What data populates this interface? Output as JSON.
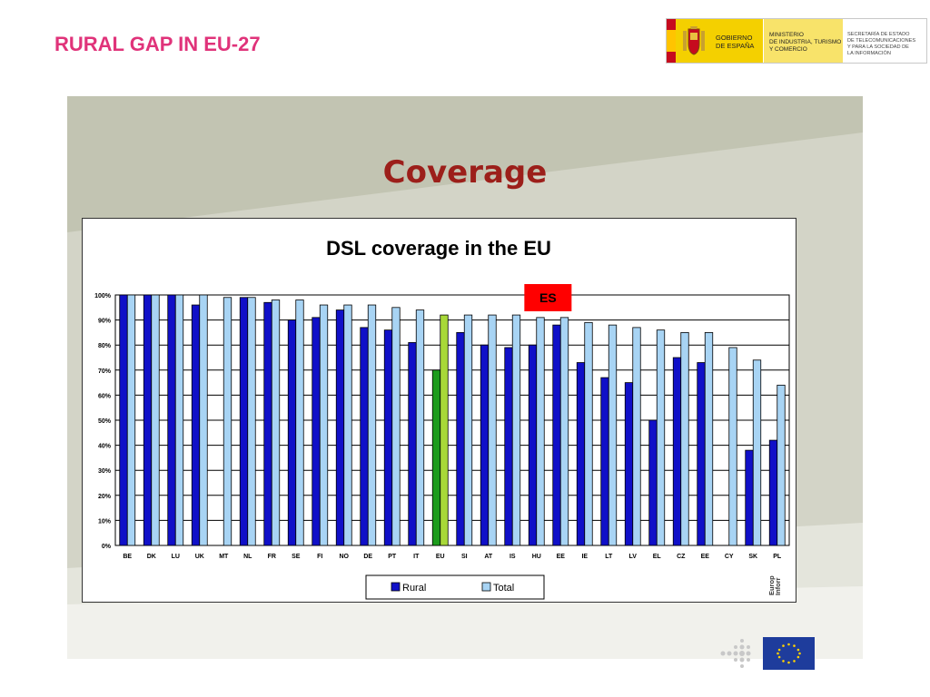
{
  "slide": {
    "title": "RURAL GAP IN EU-27"
  },
  "logo": {
    "seg1": "GOBIERNO\nDE ESPAÑA",
    "seg2": "MINISTERIO\nDE INDUSTRIA, TURISMO\nY COMERCIO",
    "seg3": "SECRETARÍA DE ESTADO\nDE TELECOMUNICACIONES\nY PARA LA SOCIEDAD DE\nLA INFORMACIÓN"
  },
  "panel": {
    "title": "Coverage"
  },
  "eu_label": "Europ\nInforr",
  "colors": {
    "rural": "#1010c8",
    "total": "#a8d4f4",
    "eu_rural": "#1c9c1c",
    "eu_total": "#a8d838",
    "highlight": "#ff0000"
  },
  "chart_data": {
    "type": "bar",
    "title": "DSL coverage in the EU",
    "categories": [
      "BE",
      "DK",
      "LU",
      "UK",
      "MT",
      "NL",
      "FR",
      "SE",
      "FI",
      "NO",
      "DE",
      "PT",
      "IT",
      "EU",
      "SI",
      "AT",
      "IS",
      "HU",
      "EE",
      "IE",
      "LT",
      "LV",
      "EL",
      "CZ",
      "EE",
      "CY",
      "SK",
      "PL"
    ],
    "series": [
      {
        "name": "Rural",
        "values": [
          100,
          100,
          100,
          96,
          0,
          99,
          97,
          90,
          91,
          94,
          87,
          86,
          81,
          70,
          85,
          80,
          79,
          80,
          88,
          73,
          67,
          65,
          50,
          75,
          73,
          0,
          38,
          42
        ]
      },
      {
        "name": "Total",
        "values": [
          100,
          100,
          100,
          100,
          99,
          99,
          98,
          98,
          96,
          96,
          96,
          95,
          94,
          92,
          92,
          92,
          92,
          91,
          91,
          89,
          88,
          87,
          86,
          85,
          85,
          79,
          74,
          64
        ]
      }
    ],
    "yticks": [
      "0%",
      "10%",
      "20%",
      "30%",
      "40%",
      "50%",
      "60%",
      "70%",
      "80%",
      "90%",
      "100%"
    ],
    "ylim": [
      0,
      100
    ],
    "legend": "bottom",
    "annotation": "ES",
    "highlight_category": "EU"
  }
}
